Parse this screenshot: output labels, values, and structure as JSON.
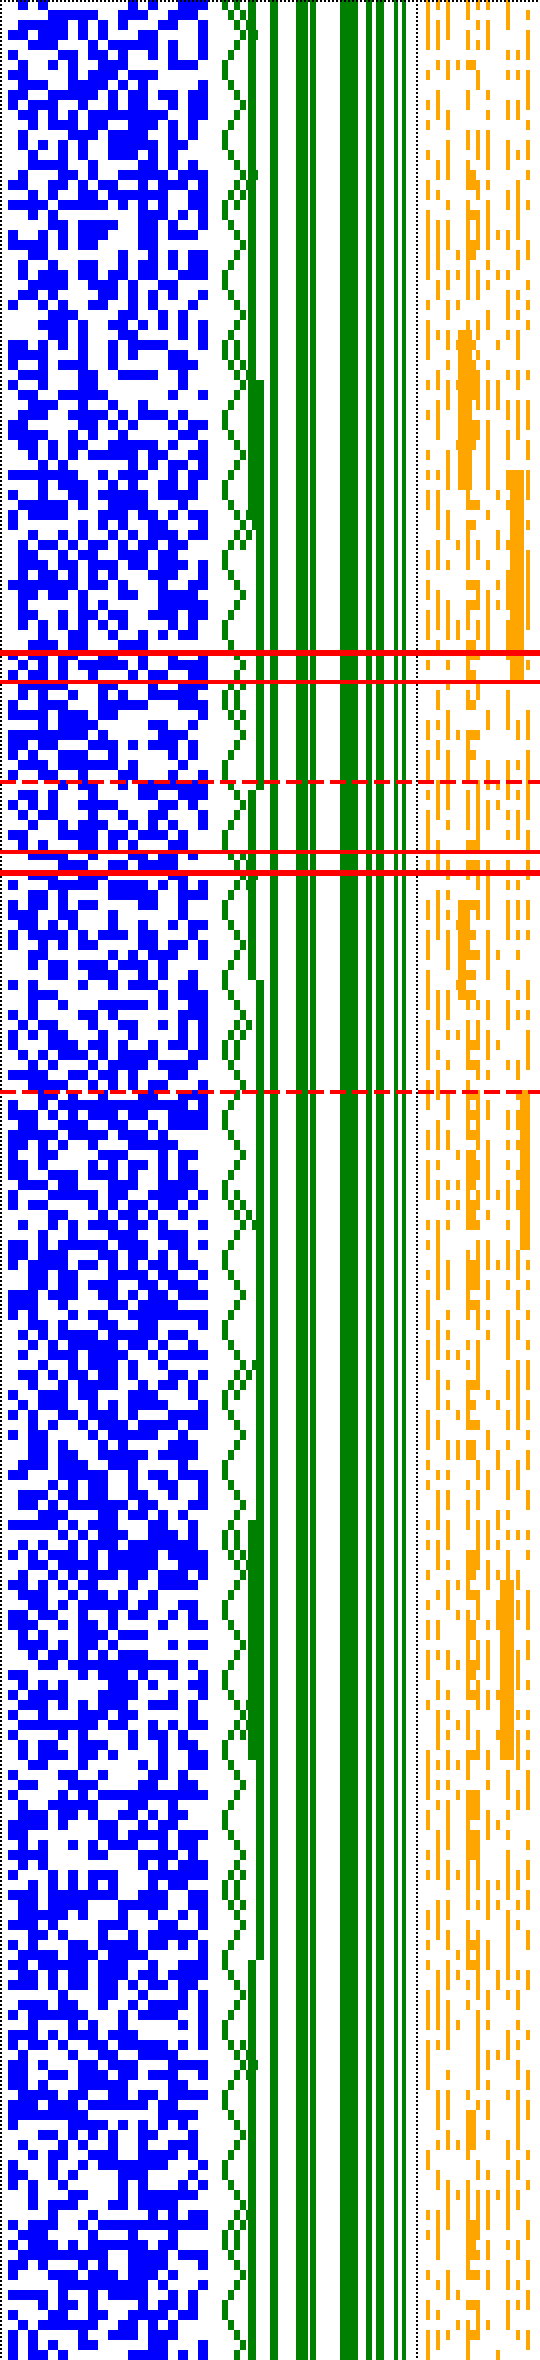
{
  "colors": {
    "background": "#ffffff",
    "blue": "#0000ff",
    "green": "#008000",
    "orange": "#ffa500",
    "red": "#ff0000",
    "dotted_border": "#000000"
  },
  "grid": {
    "rows": 236,
    "columns": 54,
    "blue_columns": 14,
    "orange_columns": 7
  },
  "green_staircase_levels": [
    1,
    2,
    3,
    4,
    3,
    2,
    1
  ],
  "green_bars": [
    0,
    1,
    2,
    3,
    4,
    5,
    6,
    7,
    8
  ],
  "red_lines": [
    {
      "row": 65,
      "thickness": 3,
      "style": "heavy"
    },
    {
      "row": 68,
      "thickness": 2,
      "style": "solid"
    },
    {
      "row": 78,
      "thickness": 2,
      "style": "dashed"
    },
    {
      "row": 85,
      "thickness": 2,
      "style": "solid"
    },
    {
      "row": 87,
      "thickness": 3,
      "style": "heavy"
    },
    {
      "row": 109,
      "thickness": 2,
      "style": "dashed"
    }
  ]
}
